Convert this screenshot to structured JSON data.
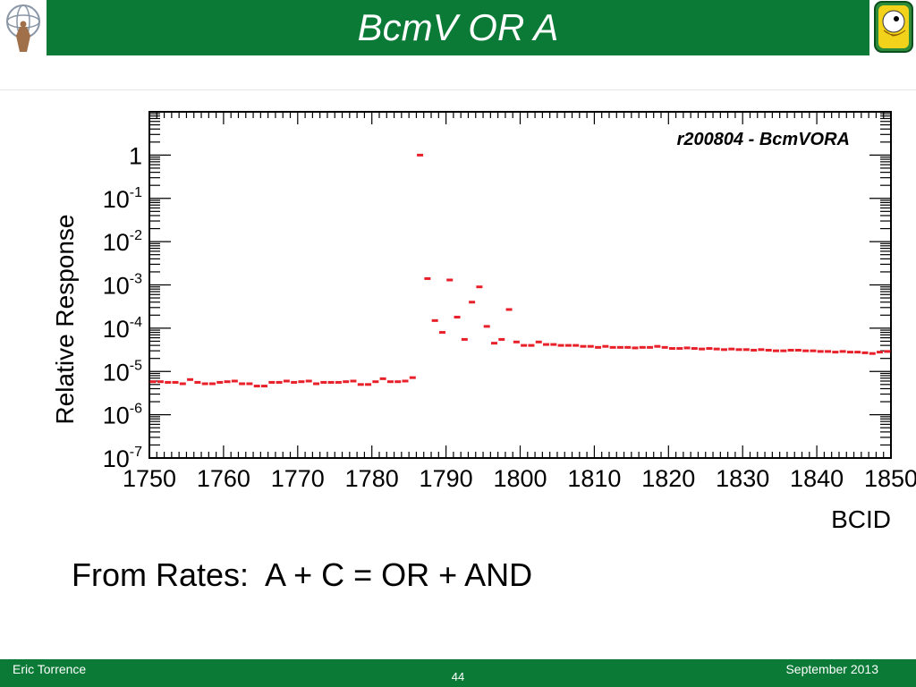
{
  "slide": {
    "title": "BcmV OR A",
    "caption": "From Rates:  A + C = OR + AND",
    "footer_author": "Eric Torrence",
    "footer_page": "44",
    "footer_date": "September 2013"
  },
  "colors": {
    "header": "#0a7a36",
    "marker": "#e8202a"
  },
  "icons": {
    "logo_left": "atlas-logo-icon",
    "logo_right": "duck-mascot-logo-icon"
  },
  "chart_data": {
    "type": "scatter",
    "title": "r200804 - BcmVORA",
    "xlabel": "BCID",
    "ylabel": "Relative Response",
    "xlim": [
      1750,
      1850
    ],
    "ylim": [
      1e-07,
      10
    ],
    "log_y": true,
    "grid": false,
    "x_ticks": [
      1750,
      1760,
      1770,
      1780,
      1790,
      1800,
      1810,
      1820,
      1830,
      1840,
      1850
    ],
    "y_ticks": [
      {
        "value": 1,
        "base": "1",
        "exp": ""
      },
      {
        "value": 0.1,
        "base": "10",
        "exp": "-1"
      },
      {
        "value": 0.01,
        "base": "10",
        "exp": "-2"
      },
      {
        "value": 0.001,
        "base": "10",
        "exp": "-3"
      },
      {
        "value": 0.0001,
        "base": "10",
        "exp": "-4"
      },
      {
        "value": 1e-05,
        "base": "10",
        "exp": "-5"
      },
      {
        "value": 1e-06,
        "base": "10",
        "exp": "-6"
      },
      {
        "value": 1e-07,
        "base": "10",
        "exp": "-7"
      }
    ],
    "series": [
      {
        "x": [
          1750,
          1751,
          1752,
          1753,
          1754,
          1755,
          1756,
          1757,
          1758,
          1759,
          1760,
          1761,
          1762,
          1763,
          1764,
          1765,
          1766,
          1767,
          1768,
          1769,
          1770,
          1771,
          1772,
          1773,
          1774,
          1775,
          1776,
          1777,
          1778,
          1779,
          1780,
          1781,
          1782,
          1783,
          1784,
          1785,
          1786,
          1787,
          1788,
          1789,
          1790,
          1791,
          1792,
          1793,
          1794,
          1795,
          1796,
          1797,
          1798,
          1799,
          1800,
          1801,
          1802,
          1803,
          1804,
          1805,
          1806,
          1807,
          1808,
          1809,
          1810,
          1811,
          1812,
          1813,
          1814,
          1815,
          1816,
          1817,
          1818,
          1819,
          1820,
          1821,
          1822,
          1823,
          1824,
          1825,
          1826,
          1827,
          1828,
          1829,
          1830,
          1831,
          1832,
          1833,
          1834,
          1835,
          1836,
          1837,
          1838,
          1839,
          1840,
          1841,
          1842,
          1843,
          1844,
          1845,
          1846,
          1847,
          1848,
          1849
        ],
        "y": [
          5.8e-06,
          5.8e-06,
          5.6e-06,
          5.6e-06,
          5.2e-06,
          6.5e-06,
          5.6e-06,
          5.2e-06,
          5.2e-06,
          5.6e-06,
          5.8e-06,
          6e-06,
          5.2e-06,
          5.2e-06,
          4.6e-06,
          4.6e-06,
          5.6e-06,
          5.6e-06,
          6e-06,
          5.6e-06,
          5.8e-06,
          6e-06,
          5.2e-06,
          5.6e-06,
          5.6e-06,
          5.6e-06,
          5.8e-06,
          6e-06,
          5e-06,
          5e-06,
          5.8e-06,
          6.8e-06,
          5.8e-06,
          5.8e-06,
          6e-06,
          7.2e-06,
          1.0,
          0.0014,
          0.00015,
          8e-05,
          0.0013,
          0.00018,
          5.5e-05,
          0.0004,
          0.0009,
          0.00011,
          4.5e-05,
          5.5e-05,
          0.00027,
          4.8e-05,
          4e-05,
          4e-05,
          4.8e-05,
          4.2e-05,
          4.2e-05,
          4e-05,
          4e-05,
          4e-05,
          3.8e-05,
          3.8e-05,
          3.6e-05,
          3.8e-05,
          3.6e-05,
          3.6e-05,
          3.6e-05,
          3.5e-05,
          3.6e-05,
          3.6e-05,
          3.8e-05,
          3.6e-05,
          3.4e-05,
          3.4e-05,
          3.5e-05,
          3.4e-05,
          3.3e-05,
          3.4e-05,
          3.3e-05,
          3.2e-05,
          3.3e-05,
          3.2e-05,
          3.2e-05,
          3.1e-05,
          3.2e-05,
          3.1e-05,
          3e-05,
          3e-05,
          3.1e-05,
          3.1e-05,
          3e-05,
          3e-05,
          2.9e-05,
          2.9e-05,
          2.8e-05,
          2.9e-05,
          2.8e-05,
          2.8e-05,
          2.7e-05,
          2.6e-05,
          2.8e-05,
          2.9e-05
        ]
      }
    ]
  }
}
